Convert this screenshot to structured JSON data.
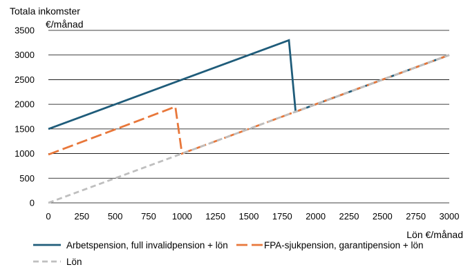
{
  "chart_data": {
    "type": "line",
    "ylabel_lines": [
      "Totala inkomster",
      "€/månad"
    ],
    "xlabel": "Lön €/månad",
    "xlim": [
      0,
      3000
    ],
    "ylim": [
      0,
      3500
    ],
    "xticks": [
      0,
      250,
      500,
      750,
      1000,
      1250,
      1500,
      1750,
      2000,
      2250,
      2500,
      2750,
      3000
    ],
    "yticks": [
      0,
      500,
      1000,
      1500,
      2000,
      2500,
      3000,
      3500
    ],
    "grid": "horizontal",
    "legend_position": "bottom",
    "series": [
      {
        "name": "Arbetspension, full invalidpension + lön",
        "color": "#1f5c7a",
        "style": "solid",
        "x": [
          0,
          1800,
          1850,
          3000
        ],
        "y": [
          1500,
          3300,
          1850,
          3000
        ]
      },
      {
        "name": "FPA-sjukpension, garantipension + lön",
        "color": "#e8773a",
        "style": "dashed",
        "x": [
          0,
          950,
          1000,
          3000
        ],
        "y": [
          980,
          1950,
          1000,
          3000
        ]
      },
      {
        "name": "Lön",
        "color": "#bfbfbf",
        "style": "dashed",
        "x": [
          0,
          3000
        ],
        "y": [
          0,
          3000
        ]
      }
    ]
  }
}
